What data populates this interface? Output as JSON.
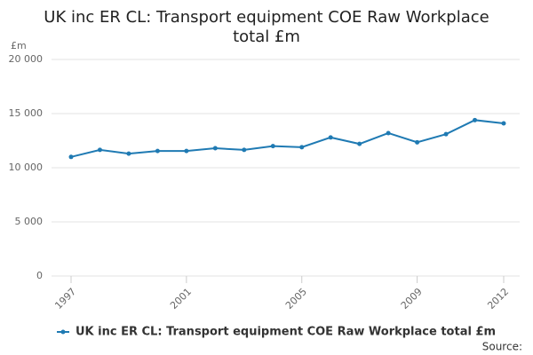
{
  "chart_data": {
    "type": "line",
    "title": "UK inc ER CL: Transport equipment COE Raw Workplace total £m",
    "y_label": "£m",
    "source": "Source:",
    "x": [
      1997,
      1998,
      1999,
      2000,
      2001,
      2002,
      2003,
      2004,
      2005,
      2006,
      2007,
      2008,
      2009,
      2010,
      2011,
      2012
    ],
    "xlim": [
      1997,
      2012
    ],
    "xticks": [
      1997,
      2001,
      2005,
      2009,
      2012
    ],
    "ylim": [
      0,
      20000
    ],
    "yticks": [
      0,
      {
        "value": 5000,
        "label": "5 000"
      },
      {
        "value": 10000,
        "label": "10 000"
      },
      {
        "value": 15000,
        "label": "15 000"
      },
      {
        "value": 20000,
        "label": "20 000"
      }
    ],
    "grid": true,
    "legend": "bottom",
    "series": [
      {
        "name": "UK inc ER CL: Transport equipment COE Raw Workplace total £m",
        "color": "#1f7ab3",
        "values": [
          11000,
          11650,
          11300,
          11550,
          11550,
          11800,
          11650,
          12000,
          11900,
          12800,
          12200,
          13200,
          12350,
          13100,
          14400,
          14100
        ]
      }
    ]
  }
}
